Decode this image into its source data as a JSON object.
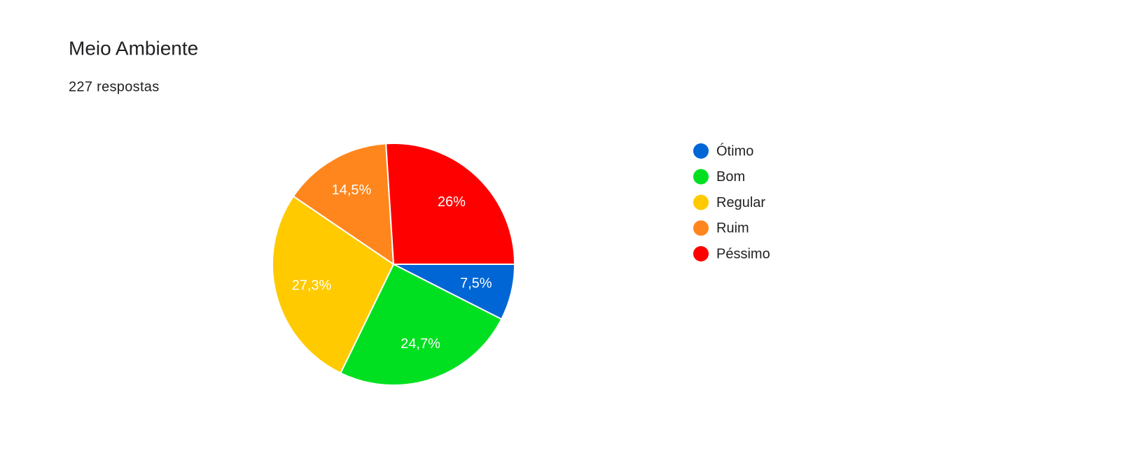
{
  "chart_data": {
    "type": "pie",
    "title": "Meio Ambiente",
    "subtitle": "227 respostas",
    "categories": [
      "Ótimo",
      "Bom",
      "Regular",
      "Ruim",
      "Péssimo"
    ],
    "values": [
      7.5,
      24.7,
      27.3,
      14.5,
      26
    ],
    "value_labels": [
      "7,5%",
      "24,7%",
      "27,3%",
      "14,5%",
      "26%"
    ],
    "colors": [
      "#0066d6",
      "#00e021",
      "#ffca00",
      "#ff861c",
      "#ff0000"
    ],
    "legend": "right"
  }
}
